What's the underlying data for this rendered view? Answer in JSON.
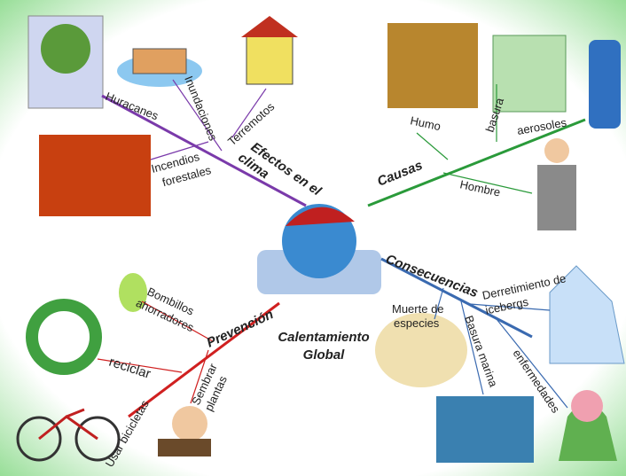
{
  "center": {
    "lines": [
      "Calentamiento",
      "Global"
    ]
  },
  "branches": [
    {
      "label": [
        "Efectos en el",
        "clima"
      ],
      "items": [
        [
          "Huracanes"
        ],
        [
          "Inundaciones"
        ],
        [
          "Terremotos"
        ],
        [
          "Incendios",
          "forestales"
        ]
      ]
    },
    {
      "label": [
        "Causas"
      ],
      "items": [
        [
          "Humo"
        ],
        [
          "basura"
        ],
        [
          "aerosoles"
        ],
        [
          "Hombre"
        ]
      ]
    },
    {
      "label": [
        "Consecuencias"
      ],
      "items": [
        [
          "Derretimiento de",
          "icebergs"
        ],
        [
          "Muerte de",
          "especies"
        ],
        [
          "Basura marina"
        ],
        [
          "enfermedades"
        ]
      ]
    },
    {
      "label": [
        "Prevención"
      ],
      "items": [
        [
          "Bombillos",
          "ahorradores"
        ],
        [
          "reciclar"
        ],
        [
          "Sembrar",
          "plantas"
        ],
        [
          "Usar bicicletas"
        ]
      ]
    }
  ]
}
